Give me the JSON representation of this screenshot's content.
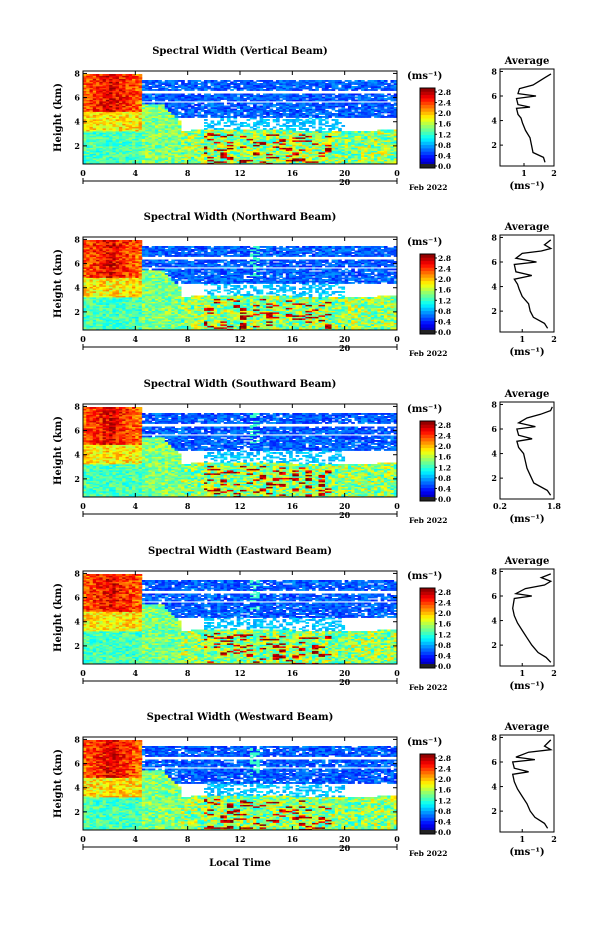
{
  "chart_data": [
    {
      "type": "heatmap",
      "title": "Spectral Width (Vertical Beam)",
      "ylabel": "Height (km)",
      "xlabel": "",
      "x_ticks": [
        "0",
        "4",
        "8",
        "12",
        "16",
        "20",
        "0"
      ],
      "y_ticks": [
        "2",
        "4",
        "6",
        "8"
      ],
      "date_day": "20",
      "date_label": "Feb 2022",
      "colorbar_unit": "(ms⁻¹)",
      "colorbar_ticks": [
        "0.0",
        "0.4",
        "0.8",
        "1.2",
        "1.6",
        "2.0",
        "2.4",
        "2.8"
      ],
      "profile": {
        "title": "Average",
        "xlabel": "(ms⁻¹)",
        "x_ticks": [
          "1",
          "2"
        ],
        "xlim": [
          0.2,
          2.0
        ],
        "y_ticks": [
          "2",
          "4",
          "6",
          "8"
        ],
        "points": [
          [
            1.7,
            0.6
          ],
          [
            1.65,
            1.0
          ],
          [
            1.3,
            1.4
          ],
          [
            1.25,
            2.0
          ],
          [
            1.2,
            2.6
          ],
          [
            1.05,
            3.2
          ],
          [
            0.95,
            3.8
          ],
          [
            0.9,
            4.2
          ],
          [
            0.8,
            4.5
          ],
          [
            0.75,
            5.0
          ],
          [
            1.2,
            5.1
          ],
          [
            0.8,
            5.3
          ],
          [
            0.75,
            5.8
          ],
          [
            1.4,
            6.0
          ],
          [
            0.8,
            6.2
          ],
          [
            0.85,
            6.6
          ],
          [
            1.3,
            6.9
          ],
          [
            1.5,
            7.2
          ],
          [
            1.7,
            7.5
          ],
          [
            1.9,
            7.8
          ]
        ]
      }
    },
    {
      "type": "heatmap",
      "title": "Spectral Width (Northward Beam)",
      "ylabel": "Height (km)",
      "xlabel": "",
      "x_ticks": [
        "0",
        "4",
        "8",
        "12",
        "16",
        "20",
        "0"
      ],
      "y_ticks": [
        "2",
        "4",
        "6",
        "8"
      ],
      "date_day": "20",
      "date_label": "Feb 2022",
      "colorbar_unit": "(ms⁻¹)",
      "colorbar_ticks": [
        "0.0",
        "0.4",
        "0.8",
        "1.2",
        "1.6",
        "2.0",
        "2.4",
        "2.8"
      ],
      "profile": {
        "title": "Average",
        "xlabel": "(ms⁻¹)",
        "x_ticks": [
          "1",
          "2"
        ],
        "xlim": [
          0.3,
          2.0
        ],
        "y_ticks": [
          "2",
          "4",
          "6",
          "8"
        ],
        "points": [
          [
            1.8,
            0.6
          ],
          [
            1.7,
            1.0
          ],
          [
            1.35,
            1.5
          ],
          [
            1.25,
            2.0
          ],
          [
            1.2,
            2.6
          ],
          [
            1.0,
            3.2
          ],
          [
            0.9,
            3.8
          ],
          [
            0.85,
            4.2
          ],
          [
            0.75,
            4.6
          ],
          [
            1.3,
            4.9
          ],
          [
            0.8,
            5.2
          ],
          [
            0.75,
            5.8
          ],
          [
            1.45,
            6.0
          ],
          [
            0.8,
            6.3
          ],
          [
            1.0,
            6.7
          ],
          [
            1.6,
            6.9
          ],
          [
            1.9,
            7.1
          ],
          [
            1.7,
            7.4
          ],
          [
            1.9,
            7.8
          ]
        ]
      }
    },
    {
      "type": "heatmap",
      "title": "Spectral Width (Southward Beam)",
      "ylabel": "Height (km)",
      "xlabel": "",
      "x_ticks": [
        "0",
        "4",
        "8",
        "12",
        "16",
        "20",
        "0"
      ],
      "y_ticks": [
        "2",
        "4",
        "6",
        "8"
      ],
      "date_day": "20",
      "date_label": "Feb 2022",
      "colorbar_unit": "(ms⁻¹)",
      "colorbar_ticks": [
        "0.0",
        "0.4",
        "0.8",
        "1.2",
        "1.6",
        "2.0",
        "2.4",
        "2.8"
      ],
      "profile": {
        "title": "Average",
        "xlabel": "(ms⁻¹)",
        "x_ticks": [
          "0.2",
          "1.8"
        ],
        "xlim": [
          0.2,
          1.8
        ],
        "y_ticks": [
          "2",
          "4",
          "6",
          "8"
        ],
        "points": [
          [
            1.7,
            0.6
          ],
          [
            1.6,
            1.0
          ],
          [
            1.2,
            1.6
          ],
          [
            1.1,
            2.2
          ],
          [
            1.0,
            2.8
          ],
          [
            0.95,
            3.4
          ],
          [
            0.9,
            4.0
          ],
          [
            0.75,
            4.5
          ],
          [
            0.7,
            5.0
          ],
          [
            1.15,
            5.2
          ],
          [
            0.75,
            5.5
          ],
          [
            0.7,
            6.0
          ],
          [
            1.25,
            6.2
          ],
          [
            0.75,
            6.5
          ],
          [
            1.0,
            6.9
          ],
          [
            1.4,
            7.2
          ],
          [
            1.7,
            7.5
          ],
          [
            1.75,
            7.8
          ]
        ]
      }
    },
    {
      "type": "heatmap",
      "title": "Spectral Width (Eastward Beam)",
      "ylabel": "Height (km)",
      "xlabel": "",
      "x_ticks": [
        "0",
        "4",
        "8",
        "12",
        "16",
        "20",
        "0"
      ],
      "y_ticks": [
        "2",
        "4",
        "6",
        "8"
      ],
      "date_day": "20",
      "date_label": "Feb 2022",
      "colorbar_unit": "(ms⁻¹)",
      "colorbar_ticks": [
        "0.0",
        "0.4",
        "0.8",
        "1.2",
        "1.6",
        "2.0",
        "2.4",
        "2.8"
      ],
      "profile": {
        "title": "Average",
        "xlabel": "(ms⁻¹)",
        "x_ticks": [
          "1",
          "2"
        ],
        "xlim": [
          0.3,
          2.0
        ],
        "y_ticks": [
          "2",
          "4",
          "6",
          "8"
        ],
        "points": [
          [
            1.9,
            0.6
          ],
          [
            1.75,
            1.0
          ],
          [
            1.5,
            1.4
          ],
          [
            1.3,
            2.0
          ],
          [
            1.15,
            2.6
          ],
          [
            1.0,
            3.2
          ],
          [
            0.85,
            3.8
          ],
          [
            0.75,
            4.4
          ],
          [
            0.7,
            5.0
          ],
          [
            0.75,
            5.8
          ],
          [
            1.3,
            6.0
          ],
          [
            0.8,
            6.2
          ],
          [
            1.1,
            6.6
          ],
          [
            1.7,
            6.9
          ],
          [
            1.9,
            7.2
          ],
          [
            1.6,
            7.5
          ],
          [
            1.9,
            7.8
          ]
        ]
      }
    },
    {
      "type": "heatmap",
      "title": "Spectral Width (Westward Beam)",
      "ylabel": "Height (km)",
      "xlabel": "Local Time",
      "x_ticks": [
        "0",
        "4",
        "8",
        "12",
        "16",
        "20",
        "0"
      ],
      "y_ticks": [
        "2",
        "4",
        "6",
        "8"
      ],
      "date_day": "20",
      "date_label": "Feb 2022",
      "colorbar_unit": "(ms⁻¹)",
      "colorbar_ticks": [
        "0.0",
        "0.4",
        "0.8",
        "1.2",
        "1.6",
        "2.0",
        "2.4",
        "2.8"
      ],
      "profile": {
        "title": "Average",
        "xlabel": "(ms⁻¹)",
        "x_ticks": [
          "1",
          "2"
        ],
        "xlim": [
          0.3,
          2.0
        ],
        "y_ticks": [
          "2",
          "4",
          "6",
          "8"
        ],
        "points": [
          [
            1.8,
            0.6
          ],
          [
            1.7,
            1.0
          ],
          [
            1.4,
            1.5
          ],
          [
            1.25,
            2.0
          ],
          [
            1.15,
            2.6
          ],
          [
            1.0,
            3.2
          ],
          [
            0.85,
            3.8
          ],
          [
            0.75,
            4.4
          ],
          [
            0.7,
            5.0
          ],
          [
            1.2,
            5.2
          ],
          [
            0.75,
            5.5
          ],
          [
            0.7,
            6.0
          ],
          [
            1.4,
            6.2
          ],
          [
            0.8,
            6.4
          ],
          [
            1.2,
            6.8
          ],
          [
            1.9,
            7.0
          ],
          [
            1.7,
            7.3
          ],
          [
            1.9,
            7.8
          ]
        ]
      }
    }
  ]
}
